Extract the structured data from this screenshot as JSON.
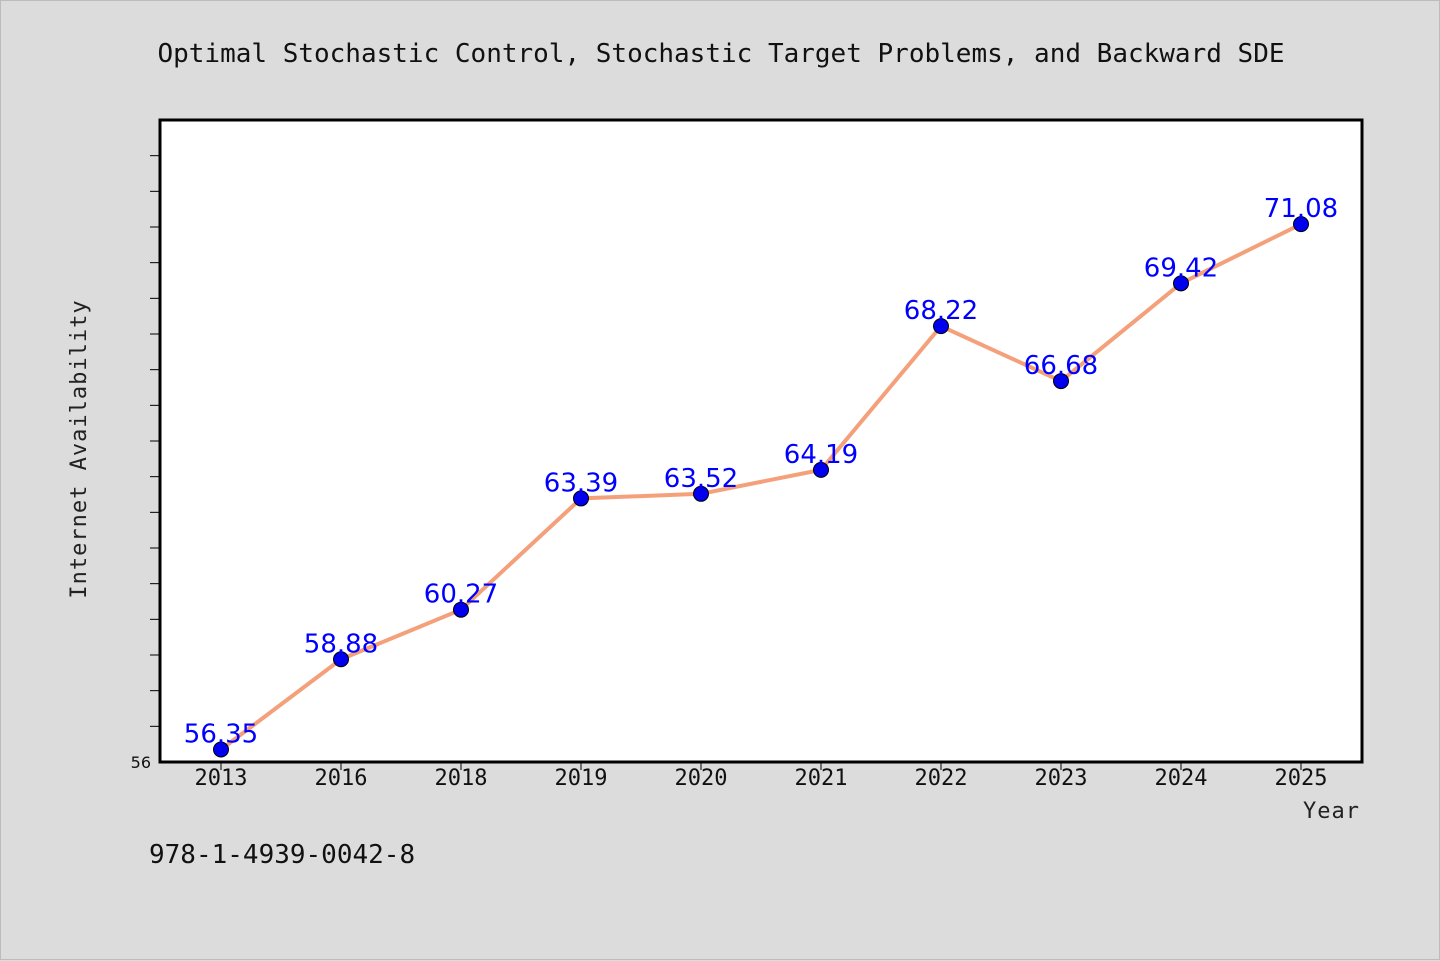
{
  "chart_data": {
    "type": "line",
    "title": "Optimal Stochastic Control, Stochastic Target Problems, and Backward SDE",
    "xlabel": "Year",
    "ylabel": "Internet Availability",
    "categories": [
      "2013",
      "2016",
      "2018",
      "2019",
      "2020",
      "2021",
      "2022",
      "2023",
      "2024",
      "2025"
    ],
    "values": [
      56.35,
      58.88,
      60.27,
      63.39,
      63.52,
      64.19,
      68.22,
      66.68,
      69.42,
      71.08
    ],
    "data_labels": [
      "56.35",
      "58.88",
      "60.27",
      "63.39",
      "63.52",
      "64.19",
      "68.22",
      "66.68",
      "69.42",
      "71.08"
    ],
    "ylim": [
      56,
      74
    ],
    "y_tick_labels": [
      "56"
    ],
    "grid": false,
    "line_color": "#f4a07a",
    "marker_color": "#0000ee",
    "label_color": "#0000ff"
  },
  "footer_text": "978-1-4939-0042-8"
}
